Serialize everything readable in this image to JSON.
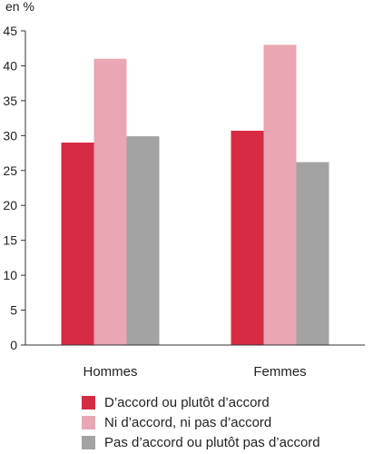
{
  "chart_data": {
    "type": "bar",
    "unit_label": "en %",
    "categories": [
      "Hommes",
      "Femmes"
    ],
    "series": [
      {
        "name": "D’accord ou plutôt d’accord",
        "color": "#d72b44",
        "values": [
          29.0,
          30.7
        ]
      },
      {
        "name": "Ni d’accord, ni pas d’accord",
        "color": "#e9a6b3",
        "values": [
          41.0,
          43.0
        ]
      },
      {
        "name": "Pas d’accord ou plutôt pas d’accord",
        "color": "#a3a3a3",
        "values": [
          29.9,
          26.2
        ]
      }
    ],
    "ylim": [
      0,
      45
    ],
    "yticks": [
      0,
      5,
      10,
      15,
      20,
      25,
      30,
      35,
      40,
      45
    ],
    "grid": false,
    "legend_position": "bottom"
  }
}
